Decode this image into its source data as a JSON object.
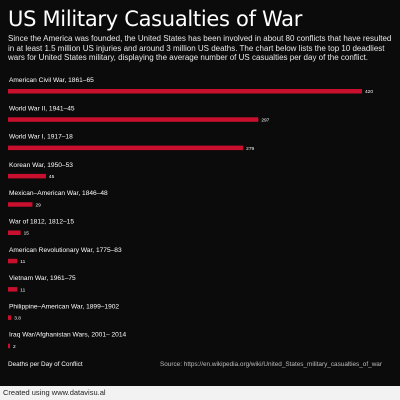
{
  "colors": {
    "background": "#0b0b0b",
    "bar": "#c8102e",
    "text": "#ffffff",
    "footer_bg": "#f2f2f2"
  },
  "chart_data": {
    "type": "bar",
    "orientation": "horizontal",
    "title": "US Military Casualties of War",
    "subtitle": "Since the America was founded, the United States has been involved in about 80 conflicts that have resulted in at least 1.5 million US injuries and around 3 million US deaths. The chart below lists the top 10 deadliest wars for United States military, displaying the average number of US casualties per day of the conflict.",
    "xlabel": "Deaths per Day of Conflict",
    "ylabel": "",
    "categories": [
      "American Civil War, 1861–65",
      "World War II, 1941–45",
      "World War I, 1917–18",
      "Korean War, 1950–53",
      "Mexican–American War, 1846–48",
      "War of 1812, 1812–15",
      "American Revolutionary War, 1775–83",
      "Vietnam War, 1961–75",
      "Philippine–American War, 1899–1902",
      "Iraq War/Afghanistan Wars, 2001– 2014"
    ],
    "values": [
      420,
      297,
      279,
      45,
      29,
      15,
      11,
      11,
      3.8,
      2
    ],
    "value_labels": [
      "420",
      "297",
      "279",
      "45",
      "29",
      "15",
      "11",
      "11",
      "3.8",
      "2"
    ],
    "xlim": [
      0,
      420
    ],
    "grid": false,
    "legend": "none",
    "source": "Source: https://en.wikipedia.org/wiki/United_States_military_casualties_of_war"
  },
  "footer": {
    "text": "Created using www.datavisu.al"
  }
}
